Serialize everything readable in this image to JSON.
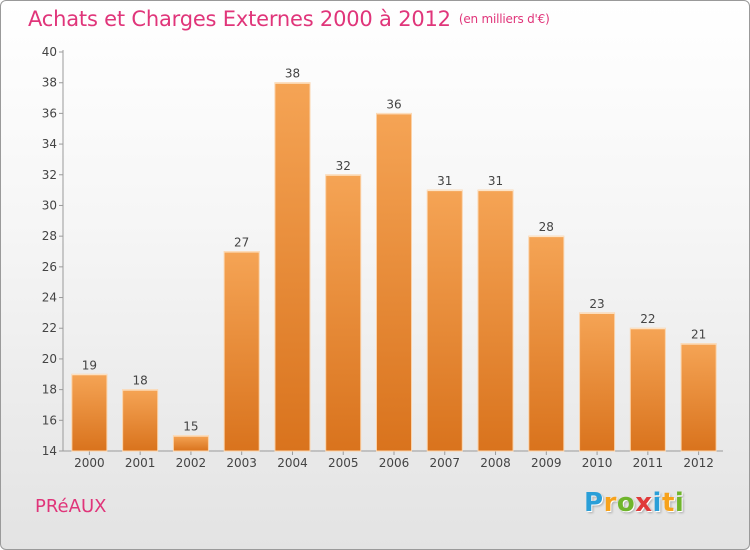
{
  "chart_data": {
    "type": "bar",
    "title": "Achats et Charges Externes 2000 à 2012",
    "unit": "(en milliers d'€)",
    "categories": [
      "2000",
      "2001",
      "2002",
      "2003",
      "2004",
      "2005",
      "2006",
      "2007",
      "2008",
      "2009",
      "2010",
      "2011",
      "2012"
    ],
    "values": [
      19,
      18,
      15,
      27,
      38,
      32,
      36,
      31,
      31,
      28,
      23,
      22,
      21
    ],
    "ylim": [
      14,
      40
    ],
    "yticks": [
      14,
      16,
      18,
      20,
      22,
      24,
      26,
      28,
      30,
      32,
      34,
      36,
      38,
      40
    ],
    "grid": false,
    "bar_color": "#f0923a"
  },
  "commune": "PRéAUX",
  "logo": {
    "letters": [
      "P",
      "r",
      "o",
      "x",
      "i",
      "t",
      "i"
    ],
    "colors": [
      "#2a9fd8",
      "#f7a21b",
      "#6fb52c",
      "#e03a3a",
      "#2a9fd8",
      "#f7a21b",
      "#6fb52c"
    ]
  }
}
